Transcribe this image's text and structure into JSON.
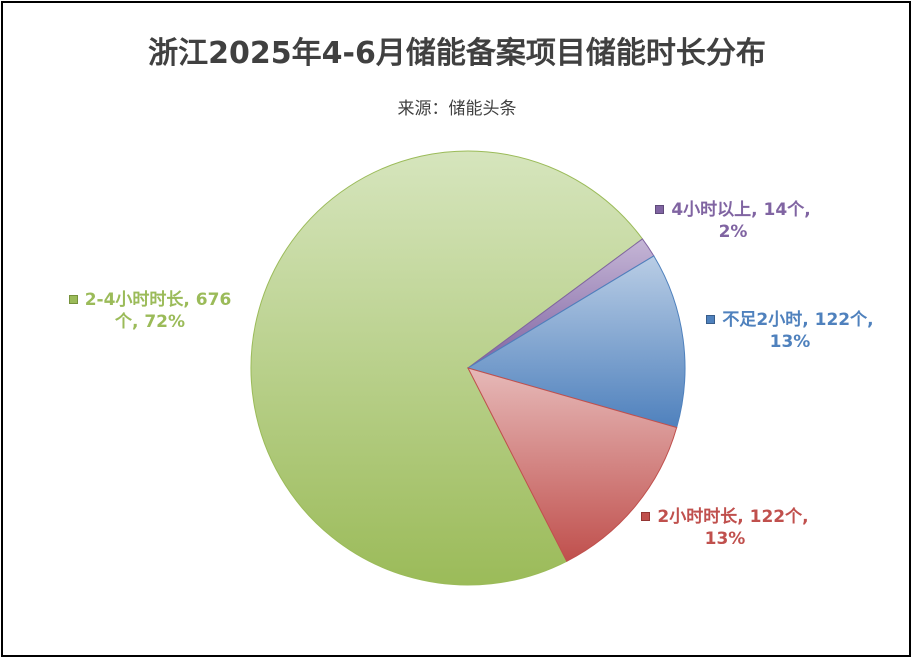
{
  "title": "浙江2025年4-6月储能备案项目储能时长分布",
  "subtitle": "来源：储能头条",
  "chart_data": {
    "type": "pie",
    "title": "浙江2025年4-6月储能备案项目储能时长分布",
    "subtitle": "来源：储能头条",
    "legend": "none",
    "slices": [
      {
        "name": "2-4小时时长",
        "value": 676,
        "percent_label": "72%",
        "unit": "个",
        "color": "#9bbb59",
        "light": "#d6e5bd",
        "label_line1": "2-4小时时长, 676",
        "label_line2": "个, 72%"
      },
      {
        "name": "4小时以上",
        "value": 14,
        "percent_label": "2%",
        "unit": "个",
        "color": "#8064a2",
        "light": "#c5b6d6",
        "label_line1": "4小时以上, 14个,",
        "label_line2": "2%"
      },
      {
        "name": "不足2小时",
        "value": 122,
        "percent_label": "13%",
        "unit": "个",
        "color": "#4f81bd",
        "light": "#b9cde5",
        "label_line1": "不足2小时, 122个,",
        "label_line2": "13%"
      },
      {
        "name": "2小时时长",
        "value": 122,
        "percent_label": "13%",
        "unit": "个",
        "color": "#c0504d",
        "light": "#e6b9b8",
        "label_line1": "2小时时长, 122个,",
        "label_line2": "13%"
      }
    ]
  }
}
